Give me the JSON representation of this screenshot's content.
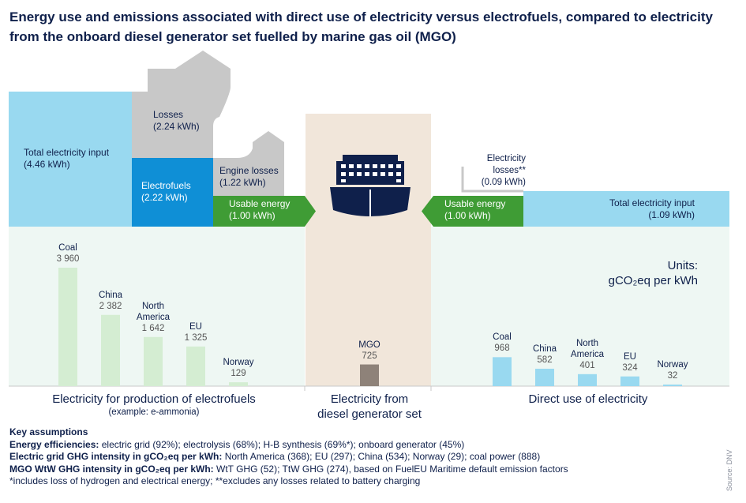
{
  "title": "Energy use and emissions associated with direct use of electricity versus electrofuels, compared to electricity from the onboard diesel generator set fuelled by marine gas oil (MGO)",
  "flow": {
    "left": {
      "total_input_label": "Total electricity input",
      "total_input_value": "(4.46 kWh)",
      "losses_label": "Losses",
      "losses_value": "(2.24 kWh)",
      "electrofuels_label": "Electrofuels",
      "electrofuels_value": "(2.22 kWh)",
      "engine_losses_label": "Engine losses",
      "engine_losses_value": "(1.22 kWh)",
      "usable_label": "Usable energy",
      "usable_value": "(1.00 kWh)"
    },
    "right": {
      "losses_label": "Electricity",
      "losses_label2": "losses**",
      "losses_value": "(0.09 kWh)",
      "usable_label": "Usable energy",
      "usable_value": "(1.00 kWh)",
      "total_input_label": "Total electricity input",
      "total_input_value": "(1.09 kWh)"
    }
  },
  "units": {
    "line1": "Units:",
    "line2": "gCO₂eq per kWh"
  },
  "sections": {
    "electrofuels": "Electricity for production of electrofuels",
    "electrofuels_sub": "(example: e-ammonia)",
    "diesel_line1": "Electricity from",
    "diesel_line2": "diesel generator set",
    "direct": "Direct use of electricity"
  },
  "chart_data": [
    {
      "type": "bar",
      "group": "Electricity for production of electrofuels",
      "categories": [
        "Coal",
        "China",
        "North America",
        "EU",
        "Norway"
      ],
      "category_lines": [
        [
          "Coal"
        ],
        [
          "China"
        ],
        [
          "North",
          "America"
        ],
        [
          "EU"
        ],
        [
          "Norway"
        ]
      ],
      "values": [
        3960,
        2382,
        1642,
        1325,
        129
      ],
      "value_labels": [
        "3 960",
        "2 382",
        "1 642",
        "1 325",
        "129"
      ],
      "unit": "gCO₂eq per kWh",
      "color": "#d4edd2"
    },
    {
      "type": "bar",
      "group": "Electricity from diesel generator set",
      "categories": [
        "MGO"
      ],
      "category_lines": [
        [
          "MGO"
        ]
      ],
      "values": [
        725
      ],
      "value_labels": [
        "725"
      ],
      "unit": "gCO₂eq per kWh",
      "color": "#8e8279"
    },
    {
      "type": "bar",
      "group": "Direct use of electricity",
      "categories": [
        "Coal",
        "China",
        "North America",
        "EU",
        "Norway"
      ],
      "category_lines": [
        [
          "Coal"
        ],
        [
          "China"
        ],
        [
          "North",
          "America"
        ],
        [
          "EU"
        ],
        [
          "Norway"
        ]
      ],
      "values": [
        968,
        582,
        401,
        324,
        32
      ],
      "value_labels": [
        "968",
        "582",
        "401",
        "324",
        "32"
      ],
      "unit": "gCO₂eq per kWh",
      "color": "#99d9f0"
    }
  ],
  "key_assumptions": {
    "heading": "Key assumptions",
    "line1_bold": "Energy efficiencies:",
    "line1_text": " electric grid (92%); electrolysis (68%); H-B synthesis (69%*); onboard generator (45%)",
    "line2_bold": "Electric grid GHG intensity in gCO₂eq per kWh:",
    "line2_text": " North America (368); EU (297); China (534); Norway (29); coal power (888)",
    "line3_bold": "MGO WtW GHG intensity in gCO₂eq per kWh:",
    "line3_text": " WtT GHG (52); TtW GHG (274), based on FuelEU Maritime default emission factors",
    "line4_text": "*includes loss of hydrogen and electrical energy; **excludes any losses related to battery charging"
  },
  "source": "Source: DNV",
  "colors": {
    "navy": "#0f204b",
    "light_blue": "#99d9f0",
    "mid_blue": "#0f8fd6",
    "green": "#3f9c35",
    "grey": "#c8c8c8",
    "pale_green_bg": "#eef7f3",
    "tan_bg": "#f1e6da"
  }
}
